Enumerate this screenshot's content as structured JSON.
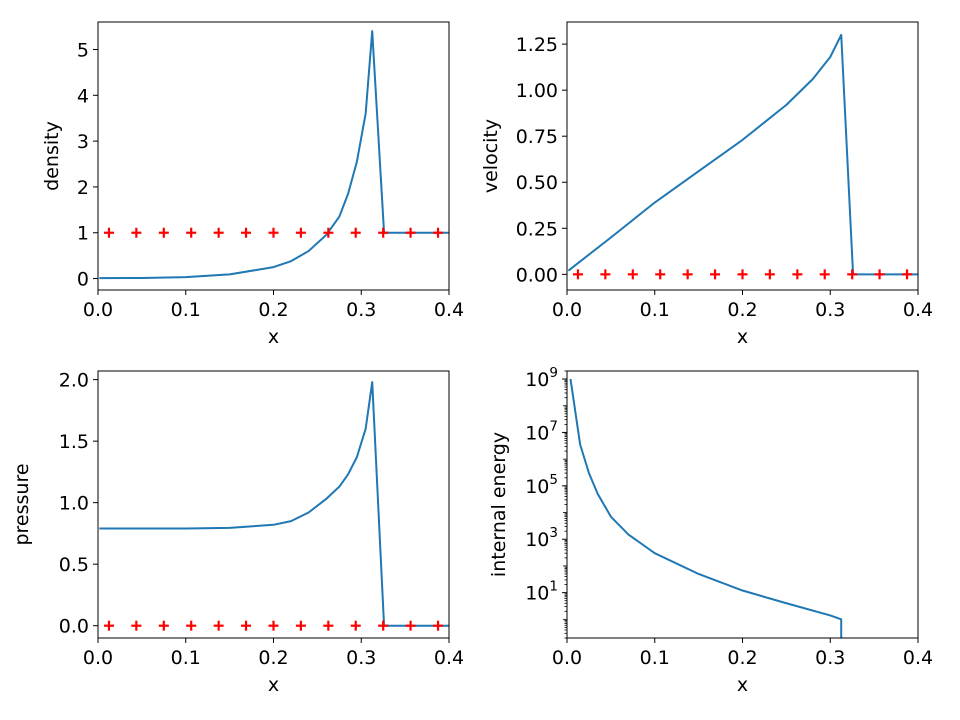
{
  "chart_data": [
    {
      "type": "line",
      "scale": "linear",
      "xlabel": "x",
      "ylabel": "density",
      "xlim": [
        0.0,
        0.4
      ],
      "ylim": [
        -0.25,
        5.6
      ],
      "xticks": [
        "0.0",
        "0.1",
        "0.2",
        "0.3",
        "0.4"
      ],
      "xtick_values": [
        0.0,
        0.1,
        0.2,
        0.3,
        0.4
      ],
      "yticks": [
        "0",
        "1",
        "2",
        "3",
        "4",
        "5"
      ],
      "ytick_values": [
        0,
        1,
        2,
        3,
        4,
        5
      ],
      "series": [
        {
          "style": "line",
          "color": "#1f77b4",
          "x": [
            0.0015,
            0.05,
            0.1,
            0.15,
            0.2,
            0.22,
            0.24,
            0.26,
            0.275,
            0.285,
            0.295,
            0.305,
            0.3125,
            0.326,
            0.345,
            0.37,
            0.4
          ],
          "y": [
            0.01,
            0.012,
            0.03,
            0.09,
            0.25,
            0.38,
            0.6,
            0.95,
            1.35,
            1.85,
            2.55,
            3.6,
            5.4,
            1.0,
            1.0,
            1.0,
            1.0
          ]
        },
        {
          "style": "markers",
          "marker": "+",
          "color": "#ff0000",
          "x": [
            0.0125,
            0.0437,
            0.075,
            0.1062,
            0.1375,
            0.1687,
            0.2,
            0.2312,
            0.2625,
            0.2937,
            0.325,
            0.3562,
            0.3875
          ],
          "y": [
            1,
            1,
            1,
            1,
            1,
            1,
            1,
            1,
            1,
            1,
            1,
            1,
            1
          ]
        }
      ]
    },
    {
      "type": "line",
      "scale": "linear",
      "xlabel": "x",
      "ylabel": "velocity",
      "xlim": [
        0.0,
        0.4
      ],
      "ylim": [
        -0.085,
        1.37
      ],
      "xticks": [
        "0.0",
        "0.1",
        "0.2",
        "0.3",
        "0.4"
      ],
      "xtick_values": [
        0.0,
        0.1,
        0.2,
        0.3,
        0.4
      ],
      "yticks": [
        "0.00",
        "0.25",
        "0.50",
        "0.75",
        "1.00",
        "1.25"
      ],
      "ytick_values": [
        0.0,
        0.25,
        0.5,
        0.75,
        1.0,
        1.25
      ],
      "series": [
        {
          "style": "line",
          "color": "#1f77b4",
          "x": [
            0.0015,
            0.05,
            0.1,
            0.15,
            0.2,
            0.25,
            0.28,
            0.3,
            0.3125,
            0.326,
            0.35,
            0.4
          ],
          "y": [
            0.02,
            0.2,
            0.39,
            0.56,
            0.73,
            0.92,
            1.06,
            1.18,
            1.3,
            0.0,
            0.0,
            0.0
          ]
        },
        {
          "style": "markers",
          "marker": "+",
          "color": "#ff0000",
          "x": [
            0.0125,
            0.0437,
            0.075,
            0.1062,
            0.1375,
            0.1687,
            0.2,
            0.2312,
            0.2625,
            0.2937,
            0.325,
            0.3562,
            0.3875
          ],
          "y": [
            0,
            0,
            0,
            0,
            0,
            0,
            0,
            0,
            0,
            0,
            0,
            0,
            0
          ]
        }
      ]
    },
    {
      "type": "line",
      "scale": "linear",
      "xlabel": "x",
      "ylabel": "pressure",
      "xlim": [
        0.0,
        0.4
      ],
      "ylim": [
        -0.1,
        2.07
      ],
      "xticks": [
        "0.0",
        "0.1",
        "0.2",
        "0.3",
        "0.4"
      ],
      "xtick_values": [
        0.0,
        0.1,
        0.2,
        0.3,
        0.4
      ],
      "yticks": [
        "0.0",
        "0.5",
        "1.0",
        "1.5",
        "2.0"
      ],
      "ytick_values": [
        0.0,
        0.5,
        1.0,
        1.5,
        2.0
      ],
      "series": [
        {
          "style": "line",
          "color": "#1f77b4",
          "x": [
            0.0015,
            0.05,
            0.1,
            0.15,
            0.2,
            0.22,
            0.24,
            0.26,
            0.275,
            0.285,
            0.295,
            0.305,
            0.3125,
            0.326,
            0.35,
            0.4
          ],
          "y": [
            0.79,
            0.79,
            0.79,
            0.795,
            0.82,
            0.85,
            0.92,
            1.03,
            1.13,
            1.23,
            1.37,
            1.6,
            1.98,
            0.0,
            0.0,
            0.0
          ]
        },
        {
          "style": "markers",
          "marker": "+",
          "color": "#ff0000",
          "x": [
            0.0125,
            0.0437,
            0.075,
            0.1062,
            0.1375,
            0.1687,
            0.2,
            0.2312,
            0.2625,
            0.2937,
            0.325,
            0.3562,
            0.3875
          ],
          "y": [
            0,
            0,
            0,
            0,
            0,
            0,
            0,
            0,
            0,
            0,
            0,
            0,
            0
          ]
        }
      ]
    },
    {
      "type": "line",
      "scale": "log",
      "xlabel": "x",
      "ylabel": "internal energy",
      "xlim": [
        0.0,
        0.4
      ],
      "ylim": [
        0.2,
        2000000000
      ],
      "xticks": [
        "0.0",
        "0.1",
        "0.2",
        "0.3",
        "0.4"
      ],
      "xtick_values": [
        0.0,
        0.1,
        0.2,
        0.3,
        0.4
      ],
      "yticks": [
        {
          "base": "10",
          "exp": "1"
        },
        {
          "base": "10",
          "exp": "3"
        },
        {
          "base": "10",
          "exp": "5"
        },
        {
          "base": "10",
          "exp": "7"
        },
        {
          "base": "10",
          "exp": "9"
        }
      ],
      "ytick_values": [
        10,
        1000,
        100000,
        10000000,
        1000000000
      ],
      "series": [
        {
          "style": "line",
          "color": "#1f77b4",
          "x": [
            0.004,
            0.015,
            0.025,
            0.035,
            0.05,
            0.07,
            0.1,
            0.15,
            0.2,
            0.25,
            0.3,
            0.3125,
            0.3125
          ],
          "y": [
            1000000000,
            3500000,
            300000,
            50000,
            7000,
            1500,
            300,
            50,
            12,
            4,
            1.4,
            1.0,
            0.2
          ]
        }
      ]
    }
  ]
}
